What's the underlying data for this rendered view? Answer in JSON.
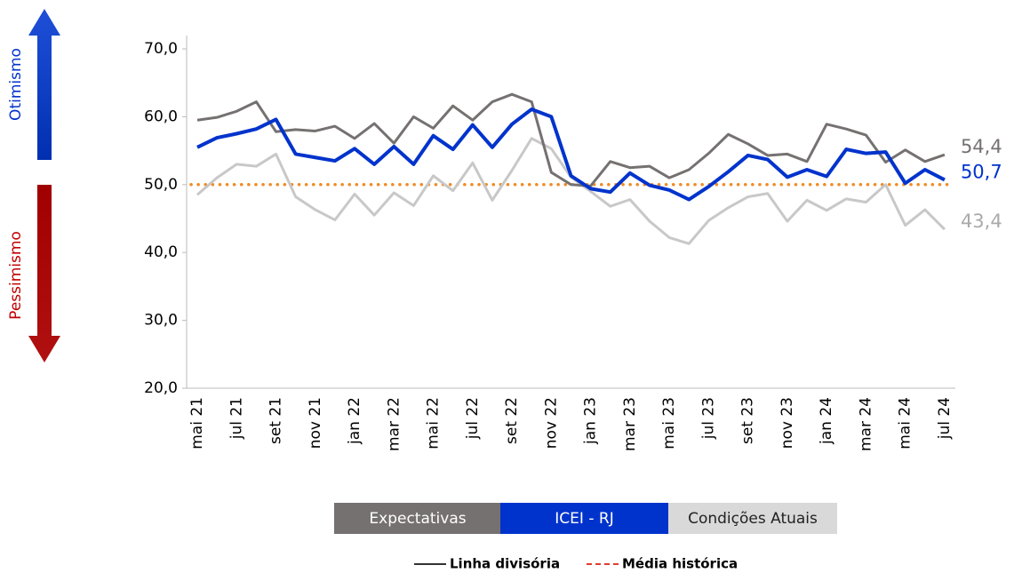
{
  "chart_data": {
    "type": "line",
    "categories": [
      "mai 21",
      null,
      "jul 21",
      null,
      "set 21",
      null,
      "nov 21",
      null,
      "jan 22",
      null,
      "mar 22",
      null,
      "mai 22",
      null,
      "jul 22",
      null,
      "set 22",
      null,
      "nov 22",
      null,
      "jan 23",
      null,
      "mar 23",
      null,
      "mai 23",
      null,
      "jul 23",
      null,
      "set 23",
      null,
      "nov 23",
      null,
      "jan 24",
      null,
      "mar 24",
      null,
      "mai 24",
      null,
      "jul 24"
    ],
    "series": [
      {
        "name": "Expectativas",
        "color": "#767171",
        "width": 3,
        "values": [
          59.5,
          59.9,
          60.8,
          62.2,
          57.8,
          58.1,
          57.9,
          58.6,
          56.8,
          59.0,
          56.1,
          60.0,
          58.3,
          61.6,
          59.5,
          62.2,
          63.3,
          62.2,
          51.8,
          50.0,
          49.8,
          53.4,
          52.5,
          52.7,
          51.0,
          52.2,
          54.6,
          57.4,
          56.0,
          54.3,
          54.5,
          53.4,
          58.9,
          58.2,
          57.3,
          53.3,
          55.1,
          53.4,
          54.4
        ],
        "value_labels": [
          null,
          null,
          null,
          null,
          null,
          null,
          null,
          null,
          null,
          null,
          null,
          null,
          null,
          null,
          null,
          null,
          null,
          null,
          null,
          null,
          null,
          null,
          null,
          null,
          null,
          null,
          null,
          null,
          null,
          null,
          null,
          null,
          null,
          null,
          null,
          null,
          null,
          null,
          "54,4"
        ]
      },
      {
        "name": "ICEI - RJ",
        "color": "#0033cc",
        "width": 4,
        "values": [
          55.5,
          56.9,
          57.5,
          58.2,
          59.6,
          54.5,
          54.0,
          53.5,
          55.3,
          53.0,
          55.6,
          53.0,
          57.2,
          55.2,
          58.8,
          55.5,
          58.9,
          61.1,
          60.0,
          51.3,
          49.4,
          48.9,
          51.7,
          49.9,
          49.2,
          47.8,
          49.7,
          51.9,
          54.3,
          53.7,
          51.1,
          52.2,
          51.2,
          55.2,
          54.6,
          54.8,
          50.2,
          52.2,
          50.7
        ],
        "value_labels": [
          null,
          null,
          null,
          null,
          null,
          null,
          null,
          null,
          null,
          null,
          null,
          null,
          null,
          null,
          null,
          null,
          null,
          null,
          null,
          null,
          null,
          null,
          null,
          null,
          null,
          null,
          null,
          null,
          null,
          null,
          null,
          null,
          null,
          null,
          null,
          null,
          null,
          null,
          "50,7"
        ]
      },
      {
        "name": "Condições Atuais",
        "color": "#c8c8c8",
        "width": 3,
        "values": [
          48.5,
          51.0,
          53.0,
          52.7,
          54.5,
          48.2,
          46.3,
          44.8,
          48.6,
          45.5,
          48.8,
          46.9,
          51.3,
          49.1,
          53.2,
          47.7,
          52.1,
          56.8,
          55.3,
          51.1,
          49.0,
          46.8,
          47.8,
          44.6,
          42.2,
          41.3,
          44.7,
          46.6,
          48.2,
          48.7,
          44.6,
          47.7,
          46.2,
          47.9,
          47.4,
          50.0,
          44.0,
          46.3,
          43.4
        ],
        "value_labels": [
          null,
          null,
          null,
          null,
          null,
          null,
          null,
          null,
          null,
          null,
          null,
          null,
          null,
          null,
          null,
          null,
          null,
          null,
          null,
          null,
          null,
          null,
          null,
          null,
          null,
          null,
          null,
          null,
          null,
          null,
          null,
          null,
          null,
          null,
          null,
          null,
          null,
          null,
          "43,4"
        ]
      }
    ],
    "legend_colors": [
      "#767171",
      "#0033cc",
      "#d9d9d9"
    ],
    "mean_line": {
      "value": 50,
      "color": "#f08a24"
    },
    "reference_legend": [
      {
        "name": "Linha divisória",
        "color": "#333333",
        "dash": "solid"
      },
      {
        "name": "Média histórica",
        "color": "#e03c31",
        "dash": "dashed"
      }
    ],
    "optimism_label": "Otimismo",
    "pessimism_label": "Pessimismo",
    "ylim": [
      20,
      70
    ],
    "yticks": [
      {
        "value": 20,
        "label": "20,0"
      },
      {
        "value": 30,
        "label": "30,0"
      },
      {
        "value": 40,
        "label": "40,0"
      },
      {
        "value": 50,
        "label": "50,0"
      },
      {
        "value": 60,
        "label": "60,0"
      },
      {
        "value": 70,
        "label": "70,0"
      }
    ],
    "grid": false
  }
}
